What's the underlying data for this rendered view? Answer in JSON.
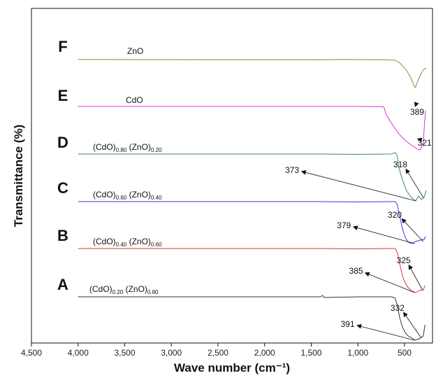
{
  "chart_data": {
    "type": "line",
    "xlabel": "Wave number (cm⁻¹)",
    "ylabel": "Transmittance (%)",
    "xlim": [
      4500,
      200
    ],
    "x_reversed": true,
    "x_ticks": [
      "4,500",
      "4,000",
      "3,500",
      "3,000",
      "2,500",
      "2,000",
      "1,500",
      "1,000",
      "500"
    ],
    "y_ticks": "none",
    "series": [
      {
        "letter": "F",
        "color": "#8b8b3a",
        "label": {
          "main": "ZnO"
        },
        "points": [
          [
            4000,
            85
          ],
          [
            1400,
            85.5
          ],
          [
            1200,
            85
          ],
          [
            700,
            85.5
          ],
          [
            600,
            86
          ],
          [
            550,
            90
          ],
          [
            480,
            100
          ],
          [
            430,
            112
          ],
          [
            400,
            122
          ],
          [
            385,
            125
          ],
          [
            370,
            120
          ],
          [
            340,
            110
          ],
          [
            300,
            100
          ],
          [
            270,
            97
          ]
        ]
      },
      {
        "letter": "E",
        "color": "#d43ad4",
        "label": {
          "main": "CdO"
        },
        "points": [
          [
            4000,
            152
          ],
          [
            1400,
            152
          ],
          [
            1000,
            152
          ],
          [
            750,
            152.5
          ],
          [
            720,
            153
          ],
          [
            700,
            163
          ],
          [
            620,
            180
          ],
          [
            550,
            193
          ],
          [
            480,
            202
          ],
          [
            420,
            208
          ],
          [
            360,
            213
          ],
          [
            330,
            214
          ],
          [
            300,
            204
          ],
          [
            285,
            175
          ],
          [
            275,
            158
          ]
        ]
      },
      {
        "letter": "D",
        "color": "#3d8a6a",
        "label": {
          "p1": "(CdO)",
          "s1": "0.80",
          "p2": " (ZnO)",
          "s2": "0.20"
        },
        "points": [
          [
            4000,
            220
          ],
          [
            1400,
            220
          ],
          [
            1000,
            220.5
          ],
          [
            640,
            220
          ],
          [
            600,
            218
          ],
          [
            580,
            222
          ],
          [
            560,
            240
          ],
          [
            520,
            258
          ],
          [
            480,
            272
          ],
          [
            440,
            280
          ],
          [
            400,
            285
          ],
          [
            380,
            287
          ],
          [
            350,
            280
          ],
          [
            320,
            285
          ],
          [
            290,
            282
          ],
          [
            270,
            272
          ]
        ]
      },
      {
        "letter": "C",
        "color": "#3a3ad4",
        "label": {
          "p1": "(CdO)",
          "s1": "0.60",
          "p2": " (ZnO)",
          "s2": "0.40"
        },
        "points": [
          [
            4000,
            288
          ],
          [
            1400,
            288
          ],
          [
            1000,
            288.5
          ],
          [
            640,
            288
          ],
          [
            600,
            288
          ],
          [
            580,
            292
          ],
          [
            550,
            310
          ],
          [
            520,
            328
          ],
          [
            490,
            340
          ],
          [
            460,
            346
          ],
          [
            420,
            348
          ],
          [
            380,
            345
          ],
          [
            330,
            343
          ],
          [
            290,
            342
          ],
          [
            275,
            338
          ]
        ]
      },
      {
        "letter": "B",
        "color": "#d43a3a",
        "label": {
          "p1": "(CdO)",
          "s1": "0.40",
          "p2": " (ZnO)",
          "s2": "0.60"
        },
        "points": [
          [
            4000,
            355
          ],
          [
            1400,
            355
          ],
          [
            1000,
            355.5
          ],
          [
            640,
            355
          ],
          [
            600,
            355
          ],
          [
            580,
            360
          ],
          [
            550,
            378
          ],
          [
            520,
            395
          ],
          [
            490,
            405
          ],
          [
            460,
            411
          ],
          [
            420,
            416
          ],
          [
            380,
            418
          ],
          [
            340,
            415
          ],
          [
            300,
            414
          ],
          [
            280,
            408
          ]
        ]
      },
      {
        "letter": "A",
        "color": "#333333",
        "label": {
          "p1": "(CdO)",
          "s1": "0.20",
          "p2": " (ZnO)",
          "s2": "0.80"
        },
        "points": [
          [
            4000,
            424
          ],
          [
            1400,
            424
          ],
          [
            1380,
            422
          ],
          [
            1360,
            425
          ],
          [
            1000,
            424
          ],
          [
            640,
            424
          ],
          [
            600,
            426
          ],
          [
            580,
            435
          ],
          [
            550,
            455
          ],
          [
            520,
            468
          ],
          [
            490,
            476
          ],
          [
            460,
            480
          ],
          [
            420,
            483
          ],
          [
            390,
            486
          ],
          [
            340,
            484
          ],
          [
            300,
            480
          ],
          [
            280,
            464
          ]
        ]
      }
    ],
    "annotations": [
      {
        "text": "389",
        "series": "F",
        "text_at": [
          365,
          164
        ],
        "arrow_to": [
          380,
          150
        ]
      },
      {
        "text": "321",
        "series": "E",
        "text_at": [
          285,
          208
        ],
        "arrow_to": [
          315,
          200
        ]
      },
      {
        "text": "318",
        "series": "D",
        "text_at": [
          545,
          239
        ],
        "arrow_to": [
          295,
          283
        ]
      },
      {
        "text": "373",
        "series": "D",
        "text_at": [
          1705,
          247
        ],
        "arrow_to": [
          380,
          287
        ]
      },
      {
        "text": "320",
        "series": "C",
        "text_at": [
          605,
          311
        ],
        "arrow_to": [
          300,
          345
        ]
      },
      {
        "text": "379",
        "series": "C",
        "text_at": [
          1150,
          326
        ],
        "arrow_to": [
          390,
          348
        ]
      },
      {
        "text": "325",
        "series": "B",
        "text_at": [
          510,
          376
        ],
        "arrow_to": [
          305,
          415
        ]
      },
      {
        "text": "385",
        "series": "B",
        "text_at": [
          1020,
          391
        ],
        "arrow_to": [
          390,
          418
        ]
      },
      {
        "text": "332",
        "series": "A",
        "text_at": [
          575,
          444
        ],
        "arrow_to": [
          320,
          483
        ]
      },
      {
        "text": "391",
        "series": "A",
        "text_at": [
          1110,
          467
        ],
        "arrow_to": [
          395,
          486
        ]
      }
    ]
  }
}
